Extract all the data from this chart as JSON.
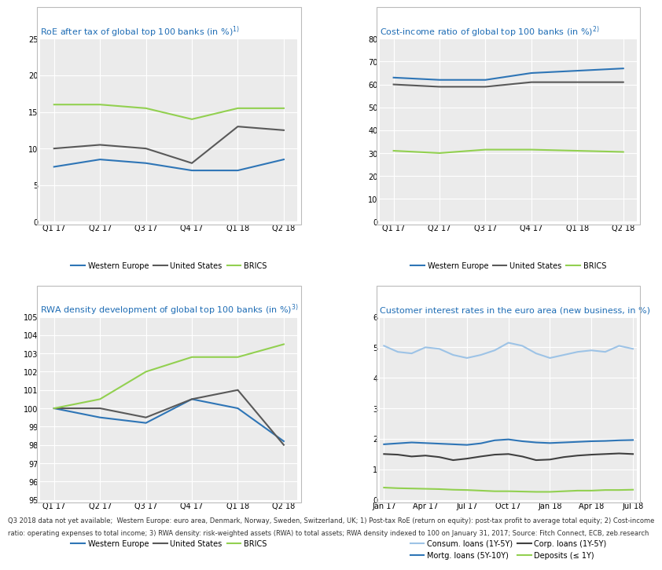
{
  "background_color": "#FFFFFF",
  "panel_bg": "#EBEBEB",
  "grid_color": "#FFFFFF",
  "border_color": "#CCCCCC",
  "panel1": {
    "title": "RoE after tax of global top 100 banks (in %)",
    "title_sup": "1)",
    "xticklabels": [
      "Q1 17",
      "Q2 17",
      "Q3 17",
      "Q4 17",
      "Q1 18",
      "Q2 18"
    ],
    "ylim": [
      0,
      25
    ],
    "yticks": [
      0,
      5,
      10,
      15,
      20,
      25
    ],
    "series": {
      "Western Europe": {
        "color": "#2E75B6",
        "values": [
          7.5,
          8.5,
          8.0,
          7.0,
          7.0,
          8.5
        ]
      },
      "United States": {
        "color": "#595959",
        "values": [
          10.0,
          10.5,
          10.0,
          8.0,
          13.0,
          12.5
        ]
      },
      "BRICS": {
        "color": "#92D050",
        "values": [
          16.0,
          16.0,
          15.5,
          14.0,
          15.5,
          15.5
        ]
      }
    }
  },
  "panel2": {
    "title": "Cost-income ratio of global top 100 banks (in %)",
    "title_sup": "2)",
    "xticklabels": [
      "Q1 17",
      "Q2 17",
      "Q3 17",
      "Q4 17",
      "Q1 18",
      "Q2 18"
    ],
    "ylim": [
      0,
      80
    ],
    "yticks": [
      0,
      10,
      20,
      30,
      40,
      50,
      60,
      70,
      80
    ],
    "series": {
      "Western Europe": {
        "color": "#2E75B6",
        "values": [
          63.0,
          62.0,
          62.0,
          65.0,
          66.0,
          67.0
        ]
      },
      "United States": {
        "color": "#595959",
        "values": [
          60.0,
          59.0,
          59.0,
          61.0,
          61.0,
          61.0
        ]
      },
      "BRICS": {
        "color": "#92D050",
        "values": [
          31.0,
          30.0,
          31.5,
          31.5,
          31.0,
          30.5
        ]
      }
    }
  },
  "panel3": {
    "title": "RWA density development of global top 100 banks (in %)",
    "title_sup": "3)",
    "xticklabels": [
      "Q1 17",
      "Q2 17",
      "Q3 17",
      "Q4 17",
      "Q1 18",
      "Q2 18"
    ],
    "ylim": [
      95,
      105
    ],
    "yticks": [
      95,
      96,
      97,
      98,
      99,
      100,
      101,
      102,
      103,
      104,
      105
    ],
    "series": {
      "Western Europe": {
        "color": "#2E75B6",
        "values": [
          100.0,
          99.5,
          99.2,
          100.5,
          100.0,
          98.2
        ]
      },
      "United States": {
        "color": "#595959",
        "values": [
          100.0,
          100.0,
          99.5,
          100.5,
          101.0,
          98.0
        ]
      },
      "BRICS": {
        "color": "#92D050",
        "values": [
          100.0,
          100.5,
          102.0,
          102.8,
          102.8,
          103.5
        ]
      }
    }
  },
  "panel4": {
    "title": "Customer interest rates in the euro area (new business, in %)",
    "xticklabels": [
      "Jan 17",
      "Apr 17",
      "Jul 17",
      "Oct 17",
      "Jan 18",
      "Apr 18",
      "Jul 18"
    ],
    "ylim": [
      0,
      6
    ],
    "yticks": [
      0,
      1,
      2,
      3,
      4,
      5,
      6
    ],
    "series": {
      "Consum. loans (1Y-5Y)": {
        "color": "#9DC3E6",
        "values": [
          5.05,
          4.85,
          4.8,
          5.0,
          4.95,
          4.75,
          4.65,
          4.75,
          4.9,
          5.15,
          5.05,
          4.8,
          4.65,
          4.75,
          4.85,
          4.9,
          4.85,
          5.05,
          4.95
        ]
      },
      "Mortg. loans (5Y-10Y)": {
        "color": "#2E75B6",
        "values": [
          1.82,
          1.85,
          1.88,
          1.86,
          1.84,
          1.82,
          1.8,
          1.85,
          1.95,
          1.98,
          1.92,
          1.88,
          1.86,
          1.88,
          1.9,
          1.92,
          1.93,
          1.95,
          1.96
        ]
      },
      "Corp. loans (1Y-5Y)": {
        "color": "#404040",
        "values": [
          1.5,
          1.48,
          1.42,
          1.45,
          1.4,
          1.3,
          1.35,
          1.42,
          1.48,
          1.5,
          1.42,
          1.3,
          1.32,
          1.4,
          1.45,
          1.48,
          1.5,
          1.52,
          1.5
        ]
      },
      "Deposits (≤ 1Y)": {
        "color": "#92D050",
        "values": [
          0.4,
          0.38,
          0.37,
          0.36,
          0.35,
          0.33,
          0.32,
          0.3,
          0.28,
          0.28,
          0.27,
          0.26,
          0.26,
          0.28,
          0.3,
          0.3,
          0.32,
          0.32,
          0.33
        ]
      }
    }
  },
  "footnote_line1": "Q3 2018 data not yet available;  Western Europe: euro area, Denmark, Norway, Sweden, Switzerland, UK; 1) Post-tax RoE (return on equity): post-tax profit to average total equity; 2) Cost-income",
  "footnote_line2": "ratio: operating expenses to total income; 3) RWA density: risk-weighted assets (RWA) to total assets; RWA density indexed to 100 on January 31, 2017; Source: Fitch Connect, ECB, zeb.research",
  "title_fontsize": 8.0,
  "tick_fontsize": 7.0,
  "legend_fontsize": 7.0,
  "footnote_fontsize": 6.0,
  "title_text_color": "#1F6DB5",
  "line_width": 1.5
}
